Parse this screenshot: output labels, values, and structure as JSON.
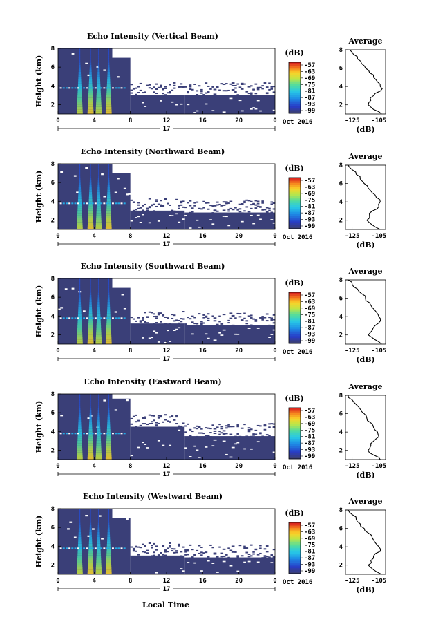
{
  "figure": {
    "xlabel": "Local Time",
    "date_label": "Oct 2016",
    "day_label": "17",
    "cbar_unit": "(dB)",
    "avg_title": "Average",
    "avg_xlabel": "(dB)"
  },
  "colors": {
    "background_fill": "#3a3f78",
    "profile_line": "#000000"
  },
  "chart_data": [
    {
      "type": "heatmap",
      "title": "Echo Intensity (Vertical Beam)",
      "ylabel": "Height (km)",
      "xlim": [
        0,
        24
      ],
      "ylim": [
        1,
        8
      ],
      "x_ticks": [
        "0",
        "4",
        "8",
        "12",
        "16",
        "20",
        "0"
      ],
      "y_ticks": [
        "2",
        "4",
        "6",
        "8"
      ],
      "colorbar": {
        "ticks": [
          "-57",
          "-63",
          "-69",
          "-75",
          "-81",
          "-87",
          "-93",
          "-99"
        ],
        "colormap": "jet",
        "range": [
          -99,
          -57
        ]
      },
      "echo_top_km": {
        "hours_0_6": 8,
        "hours_6_8": 7,
        "hours_8_14": 3.0,
        "hours_14_24": 3.0
      },
      "peak_hours": [
        2.4,
        3.6,
        4.5,
        5.6
      ],
      "average_profile": {
        "x_ticks": [
          "-125",
          "-105"
        ],
        "y_ticks": [
          "2",
          "4",
          "6",
          "8"
        ],
        "xlim": [
          -130,
          -100
        ],
        "height_km": [
          1,
          1.5,
          2,
          2.5,
          3,
          3.5,
          4,
          4.5,
          5,
          5.5,
          6,
          6.5,
          7,
          7.5,
          8
        ],
        "db": [
          -103,
          -109,
          -113,
          -111,
          -109,
          -104,
          -104,
          -106,
          -109,
          -112,
          -115,
          -118,
          -121,
          -124,
          -127
        ]
      }
    },
    {
      "type": "heatmap",
      "title": "Echo Intensity (Northward Beam)",
      "ylabel": "Height (km)",
      "xlim": [
        0,
        24
      ],
      "ylim": [
        1,
        8
      ],
      "x_ticks": [
        "0",
        "4",
        "8",
        "12",
        "16",
        "20",
        "0"
      ],
      "y_ticks": [
        "2",
        "4",
        "6",
        "8"
      ],
      "colorbar": {
        "ticks": [
          "-57",
          "-63",
          "-69",
          "-75",
          "-81",
          "-87",
          "-93",
          "-99"
        ],
        "colormap": "jet",
        "range": [
          -99,
          -57
        ]
      },
      "echo_top_km": {
        "hours_0_6": 8,
        "hours_6_8": 7,
        "hours_8_14": 3.0,
        "hours_14_24": 2.8
      },
      "peak_hours": [
        2.4,
        3.6,
        4.5,
        5.6
      ],
      "average_profile": {
        "x_ticks": [
          "-125",
          "-105"
        ],
        "y_ticks": [
          "2",
          "4",
          "6",
          "8"
        ],
        "xlim": [
          -130,
          -100
        ],
        "height_km": [
          1,
          1.5,
          2,
          2.5,
          3,
          3.5,
          4,
          4.5,
          5,
          5.5,
          6,
          6.5,
          7,
          7.5,
          8
        ],
        "db": [
          -104,
          -110,
          -114,
          -112,
          -110,
          -105,
          -104,
          -107,
          -110,
          -113,
          -116,
          -119,
          -122,
          -125,
          -128
        ]
      }
    },
    {
      "type": "heatmap",
      "title": "Echo Intensity (Southward Beam)",
      "ylabel": "Height (km)",
      "xlim": [
        0,
        24
      ],
      "ylim": [
        1,
        8
      ],
      "x_ticks": [
        "0",
        "4",
        "8",
        "12",
        "16",
        "20",
        "0"
      ],
      "y_ticks": [
        "2",
        "4",
        "6",
        "8"
      ],
      "colorbar": {
        "ticks": [
          "-57",
          "-63",
          "-69",
          "-75",
          "-81",
          "-87",
          "-93",
          "-99"
        ],
        "colormap": "jet",
        "range": [
          -99,
          -57
        ]
      },
      "echo_top_km": {
        "hours_0_6": 8,
        "hours_6_8": 7,
        "hours_8_14": 3.2,
        "hours_14_24": 3.0
      },
      "peak_hours": [
        2.4,
        3.6,
        4.5,
        5.6
      ],
      "average_profile": {
        "x_ticks": [
          "-125",
          "-105"
        ],
        "y_ticks": [
          "2",
          "4",
          "6",
          "8"
        ],
        "xlim": [
          -130,
          -100
        ],
        "height_km": [
          1,
          1.5,
          2,
          2.5,
          3,
          3.5,
          4,
          4.5,
          5,
          5.5,
          6,
          6.5,
          7,
          7.5,
          8
        ],
        "db": [
          -103,
          -108,
          -113,
          -110,
          -108,
          -104,
          -105,
          -107,
          -110,
          -112,
          -115,
          -118,
          -121,
          -125,
          -128
        ]
      }
    },
    {
      "type": "heatmap",
      "title": "Echo Intensity (Eastward Beam)",
      "ylabel": "Height (km)",
      "xlim": [
        0,
        24
      ],
      "ylim": [
        1,
        8
      ],
      "x_ticks": [
        "0",
        "4",
        "8",
        "12",
        "16",
        "20",
        "0"
      ],
      "y_ticks": [
        "2",
        "4",
        "6",
        "8"
      ],
      "colorbar": {
        "ticks": [
          "-57",
          "-63",
          "-69",
          "-75",
          "-81",
          "-87",
          "-93",
          "-99"
        ],
        "colormap": "jet",
        "range": [
          -99,
          -57
        ]
      },
      "echo_top_km": {
        "hours_0_6": 8,
        "hours_6_8": 7.5,
        "hours_8_14": 4.5,
        "hours_14_24": 3.5
      },
      "peak_hours": [
        2.4,
        3.6,
        4.5,
        5.6
      ],
      "average_profile": {
        "x_ticks": [
          "-125",
          "-105"
        ],
        "y_ticks": [
          "2",
          "4",
          "6",
          "8"
        ],
        "xlim": [
          -130,
          -100
        ],
        "height_km": [
          1,
          1.5,
          2,
          2.5,
          3,
          3.5,
          4,
          4.5,
          5,
          5.5,
          6,
          6.5,
          7,
          7.5,
          8
        ],
        "db": [
          -104,
          -109,
          -113,
          -111,
          -109,
          -105,
          -106,
          -109,
          -111,
          -114,
          -116,
          -119,
          -122,
          -125,
          -128
        ]
      }
    },
    {
      "type": "heatmap",
      "title": "Echo Intensity (Westward Beam)",
      "ylabel": "Height (km)",
      "xlim": [
        0,
        24
      ],
      "ylim": [
        1,
        8
      ],
      "x_ticks": [
        "0",
        "4",
        "8",
        "12",
        "16",
        "20",
        "0"
      ],
      "y_ticks": [
        "2",
        "4",
        "6",
        "8"
      ],
      "colorbar": {
        "ticks": [
          "-57",
          "-63",
          "-69",
          "-75",
          "-81",
          "-87",
          "-93",
          "-99"
        ],
        "colormap": "jet",
        "range": [
          -99,
          -57
        ]
      },
      "echo_top_km": {
        "hours_0_6": 8,
        "hours_6_8": 7,
        "hours_8_14": 3.0,
        "hours_14_24": 2.8
      },
      "peak_hours": [
        2.4,
        3.6,
        4.5,
        5.6
      ],
      "average_profile": {
        "x_ticks": [
          "-125",
          "-105"
        ],
        "y_ticks": [
          "2",
          "4",
          "6",
          "8"
        ],
        "xlim": [
          -130,
          -100
        ],
        "height_km": [
          1,
          1.5,
          2,
          2.5,
          3,
          3.5,
          4,
          4.5,
          5,
          5.5,
          6,
          6.5,
          7,
          7.5,
          8
        ],
        "db": [
          -103,
          -109,
          -113,
          -111,
          -109,
          -104,
          -105,
          -108,
          -110,
          -113,
          -116,
          -119,
          -122,
          -125,
          -128
        ]
      }
    }
  ]
}
